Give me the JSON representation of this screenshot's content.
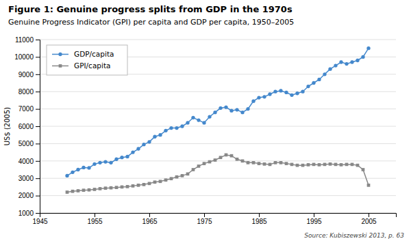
{
  "chart_data": {
    "type": "line",
    "title": "Figure 1: Genuine progress splits from GDP in the 1970s",
    "subtitle": "Genuine Progress Indicator (GPI) per capita and GDP per capita, 1950–2005",
    "ylabel": "US$ (2005)",
    "source": "Source: Kubiszewski 2013, p. 63",
    "x": [
      1950,
      1951,
      1952,
      1953,
      1954,
      1955,
      1956,
      1957,
      1958,
      1959,
      1960,
      1961,
      1962,
      1963,
      1964,
      1965,
      1966,
      1967,
      1968,
      1969,
      1970,
      1971,
      1972,
      1973,
      1974,
      1975,
      1976,
      1977,
      1978,
      1979,
      1980,
      1981,
      1982,
      1983,
      1984,
      1985,
      1986,
      1987,
      1988,
      1989,
      1990,
      1991,
      1992,
      1993,
      1994,
      1995,
      1996,
      1997,
      1998,
      1999,
      2000,
      2001,
      2002,
      2003,
      2004,
      2005
    ],
    "series": [
      {
        "name": "GDP/capita",
        "color": "#4488cc",
        "marker": "circle",
        "values": [
          3150,
          3350,
          3500,
          3620,
          3600,
          3820,
          3900,
          3950,
          3900,
          4100,
          4200,
          4250,
          4500,
          4700,
          4950,
          5100,
          5400,
          5500,
          5750,
          5900,
          5900,
          6000,
          6200,
          6500,
          6350,
          6200,
          6550,
          6800,
          7050,
          7100,
          6900,
          6950,
          6800,
          7000,
          7450,
          7650,
          7700,
          7850,
          8000,
          8050,
          7950,
          7800,
          7900,
          8000,
          8300,
          8500,
          8700,
          9000,
          9300,
          9500,
          9700,
          9600,
          9700,
          9800,
          10000,
          10500
        ]
      },
      {
        "name": "GPI/capita",
        "color": "#888888",
        "marker": "square",
        "values": [
          2200,
          2250,
          2280,
          2310,
          2330,
          2360,
          2400,
          2430,
          2450,
          2470,
          2500,
          2520,
          2560,
          2600,
          2640,
          2700,
          2780,
          2820,
          2900,
          2980,
          3080,
          3150,
          3250,
          3500,
          3700,
          3850,
          3950,
          4050,
          4200,
          4350,
          4300,
          4100,
          4000,
          3900,
          3900,
          3850,
          3820,
          3800,
          3900,
          3900,
          3850,
          3800,
          3750,
          3750,
          3780,
          3800,
          3780,
          3800,
          3820,
          3800,
          3780,
          3800,
          3800,
          3750,
          3500,
          2600
        ]
      }
    ],
    "xlim": [
      1945,
      2010
    ],
    "ylim": [
      1000,
      11000
    ],
    "xticks": [
      1945,
      1955,
      1965,
      1975,
      1985,
      1995,
      2005
    ],
    "yticks": [
      1000,
      2000,
      3000,
      4000,
      5000,
      6000,
      7000,
      8000,
      9000,
      10000,
      11000
    ],
    "grid": true,
    "legend": "upper left"
  }
}
